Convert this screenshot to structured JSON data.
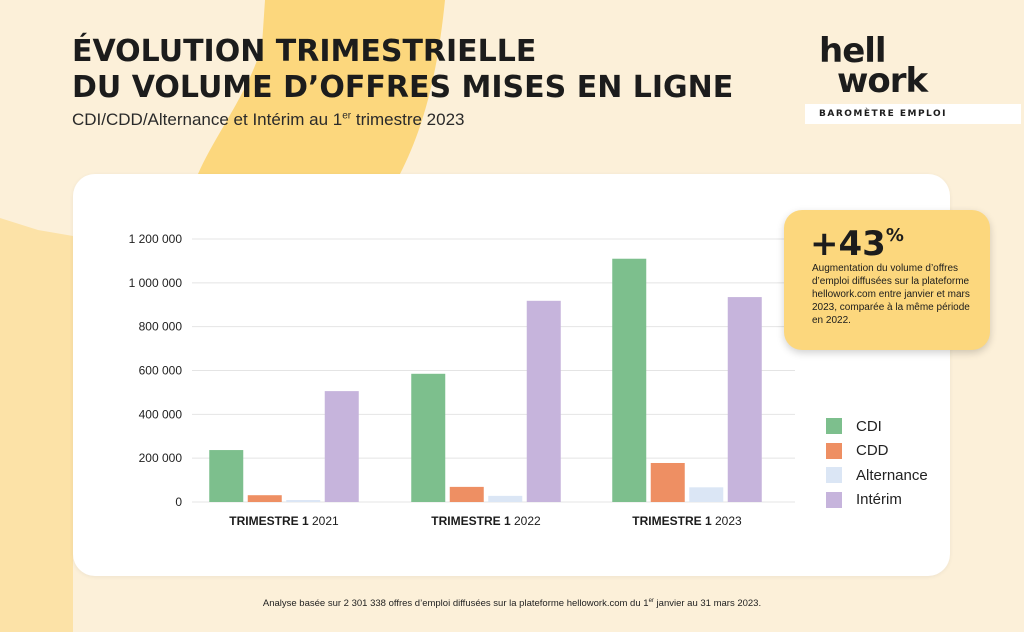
{
  "header": {
    "title_line1": "ÉVOLUTION TRIMESTRIELLE",
    "title_line2": "DU VOLUME D’OFFRES MISES EN LIGNE",
    "subtitle_before": "CDI/CDD/Alternance et Intérim au 1",
    "subtitle_sup": "er",
    "subtitle_after": " trimestre 2023"
  },
  "logo": {
    "word_line1": "hell",
    "word_line2": "work",
    "tagline": "BAROMÈTRE EMPLOI"
  },
  "callout": {
    "value": "+43",
    "unit": "%",
    "text": "Augmentation du volume d’offres d’emploi diffusées sur la plateforme hellowork.com entre janvier et mars 2023, comparée à la même période en 2022."
  },
  "footnote": {
    "before": "Analyse basée sur 2 301 338 offres d’emploi diffusées sur la plateforme hellowork.com du 1",
    "sup": "er",
    "after": " janvier au 31 mars 2023."
  },
  "colors": {
    "background": "#fcf0d9",
    "accent_shape": "#fcd77d",
    "cdi": "#7dbf8d",
    "cdd": "#ee8f63",
    "alternance": "#dbe6f5",
    "interim": "#c6b4dc"
  },
  "chart_data": {
    "type": "bar",
    "categories": [
      {
        "bold": "TRIMESTRE 1",
        "year": "2021"
      },
      {
        "bold": "TRIMESTRE 1",
        "year": "2022"
      },
      {
        "bold": "TRIMESTRE 1",
        "year": "2023"
      }
    ],
    "series": [
      {
        "name": "CDI",
        "color": "#7dbf8d",
        "values": [
          237000,
          585000,
          1110000
        ]
      },
      {
        "name": "CDD",
        "color": "#ee8f63",
        "values": [
          31000,
          69000,
          178000
        ]
      },
      {
        "name": "Alternance",
        "color": "#dbe6f5",
        "values": [
          9000,
          28000,
          67000
        ]
      },
      {
        "name": "Intérim",
        "color": "#c6b4dc",
        "values": [
          506000,
          918000,
          935000
        ]
      }
    ],
    "yticks": [
      0,
      200000,
      400000,
      600000,
      800000,
      1000000,
      1200000
    ],
    "ytick_labels": [
      "0",
      "200 000",
      "400 000",
      "600 000",
      "800 000",
      "1 000 000",
      "1 200 000"
    ],
    "ylim": [
      0,
      1200000
    ],
    "grid": true,
    "legend_position": "right"
  }
}
